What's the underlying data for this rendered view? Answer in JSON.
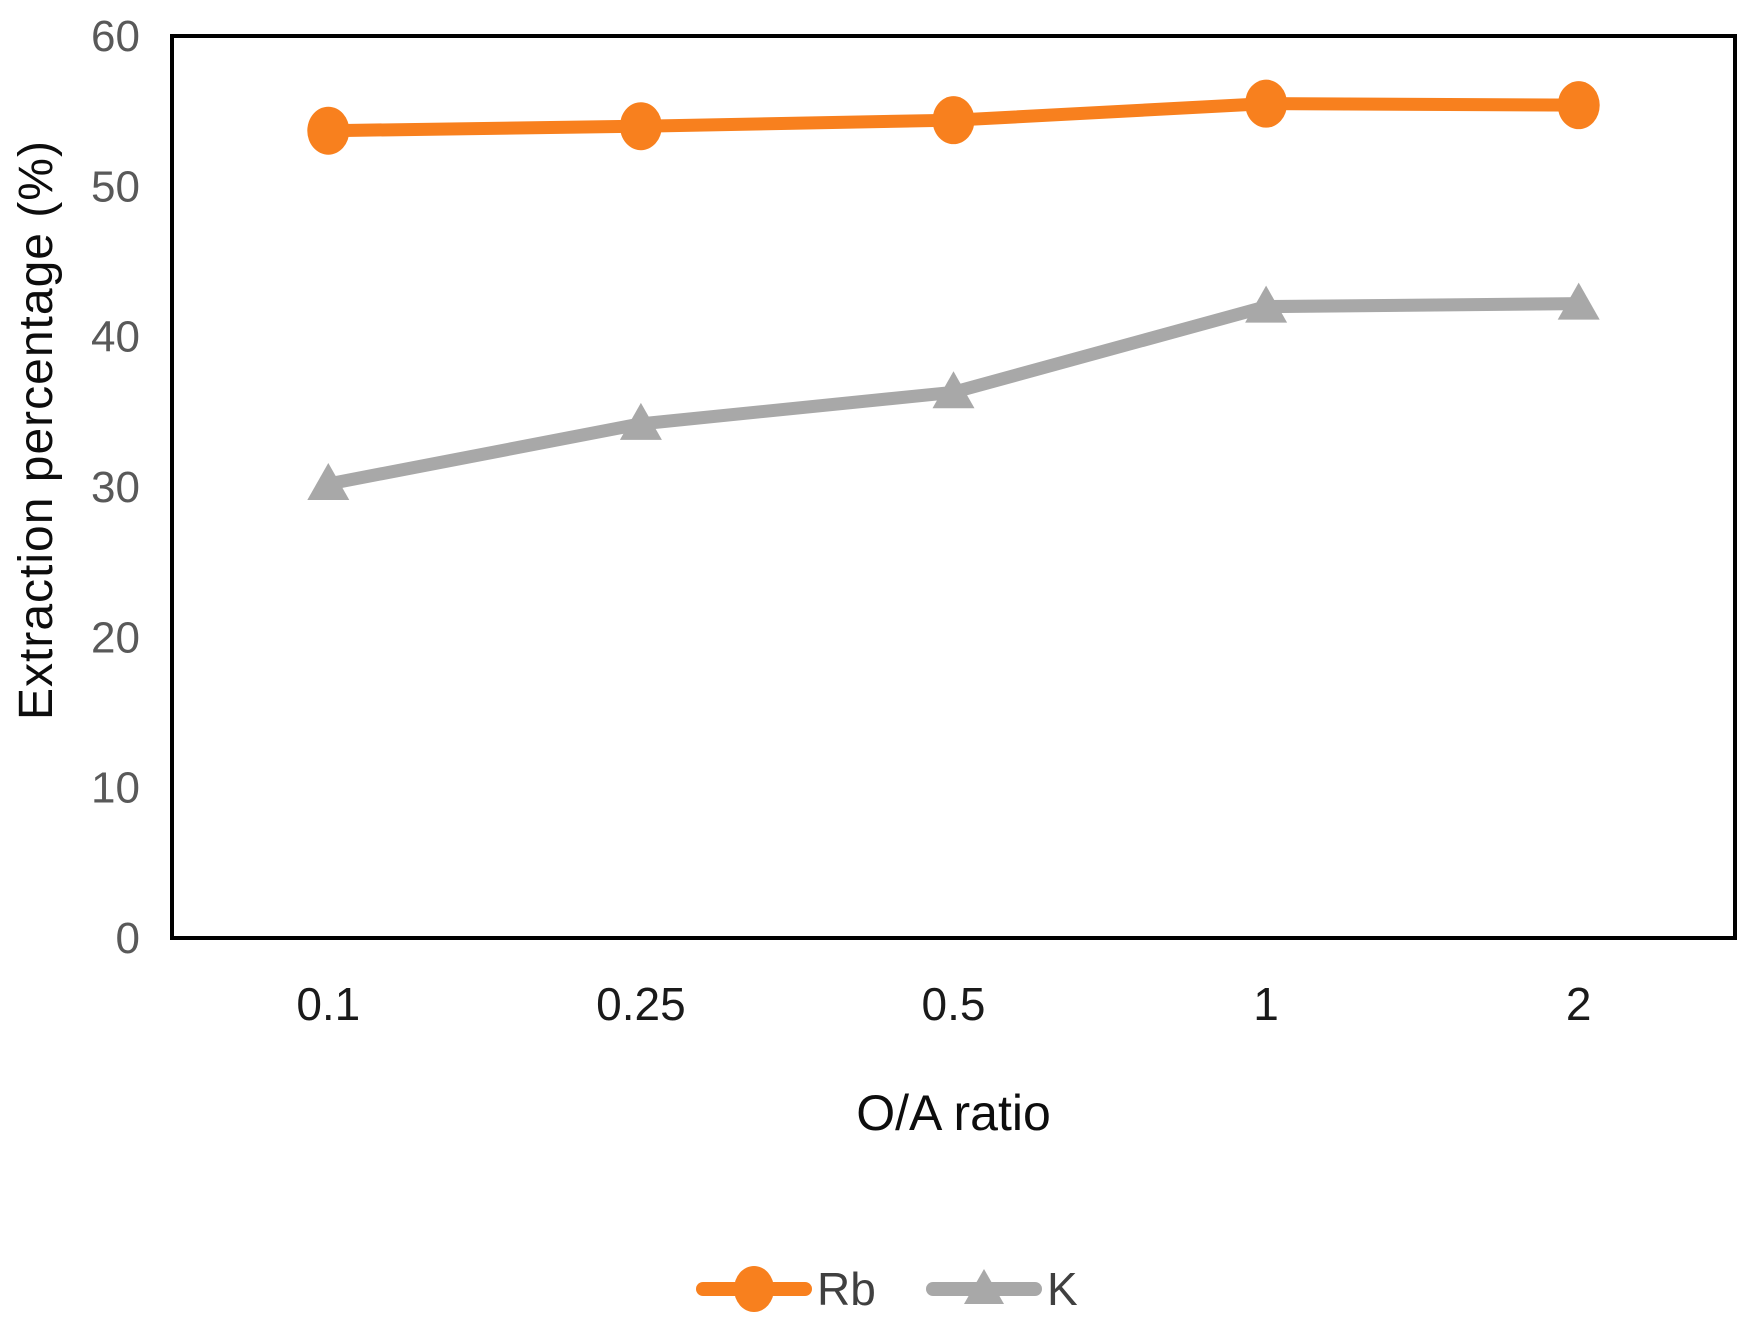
{
  "chart_data": {
    "type": "line",
    "title": "",
    "xlabel": "O/A ratio",
    "ylabel": "Extraction percentage  (%)",
    "categories": [
      "0.1",
      "0.25",
      "0.5",
      "1",
      "2"
    ],
    "series": [
      {
        "name": "Rb",
        "marker": "circle",
        "color": "#F8801E",
        "values": [
          53.7,
          54.0,
          54.4,
          55.5,
          55.4
        ]
      },
      {
        "name": "K",
        "marker": "triangle",
        "color": "#A8A8A8",
        "values": [
          30.2,
          34.2,
          36.3,
          42.0,
          42.2
        ]
      }
    ],
    "ylim": [
      0,
      60
    ],
    "yticks": [
      0,
      10,
      20,
      30,
      40,
      50,
      60
    ],
    "grid": false,
    "legend_position": "bottom",
    "colors": {
      "plot_border": "#000000",
      "y_tick_label": "#595959",
      "x_tick_label": "#1a1a1a",
      "axis_title": "#0d0d0d",
      "legend_text": "#404040",
      "background": "#ffffff"
    }
  }
}
